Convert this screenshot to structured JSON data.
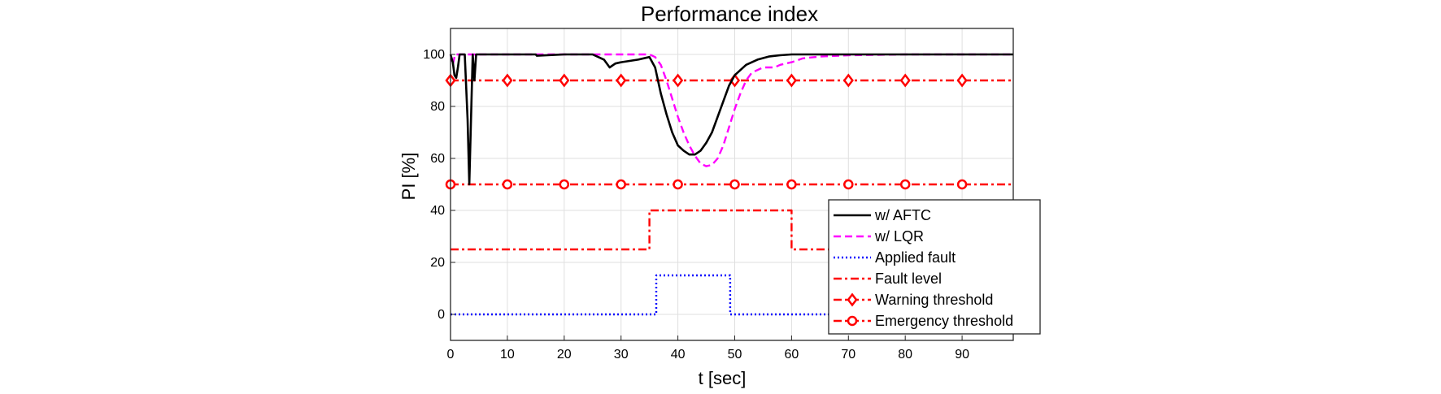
{
  "chart_data": {
    "type": "line",
    "title": "Performance index",
    "xlabel": "t [sec]",
    "ylabel": "PI [%]",
    "xlim": [
      0,
      99
    ],
    "ylim": [
      -10,
      110
    ],
    "xticks": [
      0,
      10,
      20,
      30,
      40,
      50,
      60,
      70,
      80,
      90
    ],
    "yticks": [
      0,
      20,
      40,
      60,
      80,
      100
    ],
    "grid": true,
    "legend_position": "bottom-right",
    "series": [
      {
        "name": "w/ AFTC",
        "color": "#000000",
        "style": "solid",
        "marker": "none",
        "x": [
          0,
          0.4,
          0.7,
          1.0,
          1.3,
          1.6,
          2.0,
          2.5,
          3.0,
          3.3,
          3.6,
          3.9,
          4.2,
          4.5,
          5,
          10,
          15,
          15.2,
          20,
          25,
          26,
          27,
          28,
          29,
          30,
          33,
          35,
          36,
          37,
          38,
          39,
          40,
          41,
          42,
          43,
          44,
          45,
          46,
          47,
          48,
          49,
          50,
          52,
          54,
          56,
          58,
          60,
          65,
          70,
          80,
          90,
          99
        ],
        "y": [
          100,
          97,
          92,
          91,
          95,
          100,
          100,
          100,
          75,
          50,
          75,
          100,
          90,
          100,
          100,
          100,
          100,
          99.5,
          100,
          100,
          99,
          98,
          95,
          96.5,
          97,
          98,
          99,
          95,
          85,
          77,
          70,
          65,
          63,
          61.5,
          61.5,
          63,
          66,
          70,
          76,
          82,
          88,
          92,
          96,
          98,
          99.2,
          99.7,
          100,
          100,
          100,
          100,
          100,
          100
        ]
      },
      {
        "name": "w/ LQR",
        "color": "#ff00ff",
        "style": "dashed",
        "marker": "none",
        "x": [
          0,
          0.4,
          0.8,
          1,
          5,
          10,
          15,
          20,
          25,
          30,
          35,
          36,
          37,
          38,
          39,
          40,
          41,
          42,
          43,
          44,
          45,
          46,
          47,
          48,
          49,
          50,
          51,
          52,
          53,
          55,
          57,
          58,
          60,
          62,
          65,
          70,
          80,
          90,
          99
        ],
        "y": [
          100,
          96,
          100,
          100,
          100,
          100,
          100,
          100,
          100,
          100,
          100,
          99,
          96,
          90,
          83,
          76,
          70,
          65,
          61,
          58,
          57,
          57.5,
          60,
          65,
          72,
          79,
          85,
          90,
          93,
          95,
          95,
          96,
          97,
          98.5,
          99.2,
          99.7,
          100,
          100,
          100
        ]
      },
      {
        "name": "Applied fault",
        "color": "#0000ff",
        "style": "dotted",
        "marker": "none",
        "x": [
          0,
          36.2,
          36.2,
          49.2,
          49.2,
          99
        ],
        "y": [
          0,
          0,
          15,
          15,
          0,
          0
        ]
      },
      {
        "name": "Fault level",
        "color": "#ff0000",
        "style": "dashdot",
        "marker": "none",
        "x": [
          0,
          35,
          35,
          60,
          60,
          99
        ],
        "y": [
          25,
          25,
          40,
          40,
          25,
          25
        ]
      },
      {
        "name": "Warning threshold",
        "color": "#ff0000",
        "style": "dashdot",
        "marker": "diamond",
        "x": [
          0,
          99
        ],
        "y": [
          90,
          90
        ],
        "marker_x": [
          0,
          10,
          20,
          30,
          40,
          50,
          60,
          70,
          80,
          90
        ]
      },
      {
        "name": "Emergency threshold",
        "color": "#ff0000",
        "style": "dashdot",
        "marker": "circle",
        "x": [
          0,
          99
        ],
        "y": [
          50,
          50
        ],
        "marker_x": [
          0,
          10,
          20,
          30,
          40,
          50,
          60,
          70,
          80,
          90
        ]
      }
    ]
  }
}
